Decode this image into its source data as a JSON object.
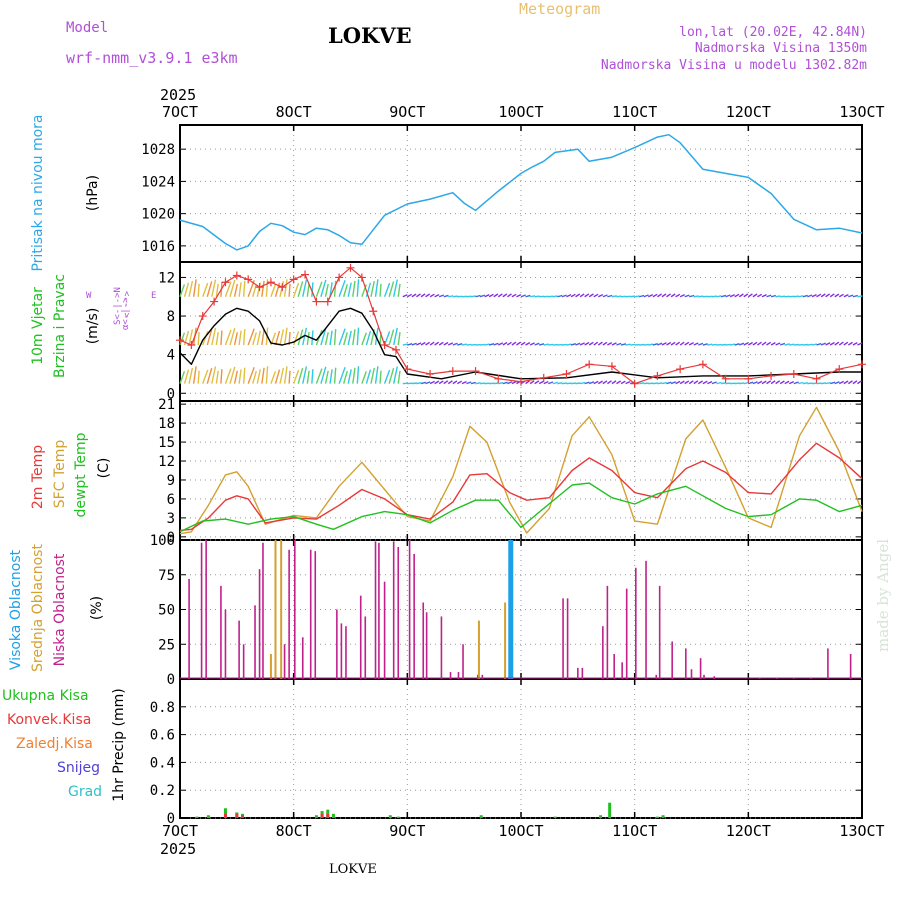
{
  "header": {
    "model_label": "Model",
    "model_name": "wrf-nmm_v3.9.1 e3km",
    "station": "LOKVE",
    "meteogram": "Meteogram",
    "lonlat": "lon,lat (20.02E, 42.84N)",
    "elevation": "Nadmorska Visina 1350m",
    "model_elevation": "Nadmorska Visina u modelu 1302.82m",
    "year_top": "2025",
    "year_bottom": "2025",
    "footer": "LOKVE",
    "credit": "made by Angel"
  },
  "colors": {
    "pressure": "#2ca8e8",
    "wind_mean": "#000000",
    "gust": "#e83838",
    "t2m": "#e83838",
    "sfc": "#d4a030",
    "dew": "#20c020",
    "high_cloud": "#1ea0e8",
    "mid_cloud": "#d4a030",
    "low_cloud": "#c0208c",
    "total_precip": "#20c020",
    "label_violet": "#b050d8"
  },
  "chart_data": {
    "type": "meteogram",
    "x_ticks": [
      "7OCT",
      "8OCT",
      "9OCT",
      "10OCT",
      "11OCT",
      "12OCT",
      "13OCT"
    ],
    "x_range_days": [
      7,
      13
    ],
    "panels": [
      {
        "id": "pressure",
        "type": "line",
        "ylabel_lines": [
          "Pritisak na nivou mora",
          "(hPa)"
        ],
        "ylim": [
          1014,
          1031
        ],
        "yticks": [
          1016,
          1020,
          1024,
          1028
        ],
        "series": [
          {
            "name": "MSLP",
            "x": [
              7.0,
              7.2,
              7.4,
              7.5,
              7.6,
              7.7,
              7.8,
              7.9,
              8.0,
              8.1,
              8.2,
              8.3,
              8.4,
              8.5,
              8.6,
              8.7,
              8.8,
              9.0,
              9.2,
              9.4,
              9.5,
              9.6,
              9.8,
              10.0,
              10.1,
              10.2,
              10.3,
              10.5,
              10.6,
              10.8,
              11.0,
              11.2,
              11.3,
              11.4,
              11.6,
              11.8,
              12.0,
              12.2,
              12.4,
              12.6,
              12.8,
              13.0
            ],
            "values": [
              1019.2,
              1018.4,
              1016.3,
              1015.5,
              1016.0,
              1017.8,
              1018.8,
              1018.5,
              1017.7,
              1017.4,
              1018.2,
              1018.0,
              1017.3,
              1016.4,
              1016.2,
              1018.0,
              1019.8,
              1021.2,
              1021.8,
              1022.6,
              1021.3,
              1020.4,
              1022.8,
              1025.0,
              1025.8,
              1026.5,
              1027.6,
              1028.0,
              1026.5,
              1027.0,
              1028.2,
              1029.5,
              1029.8,
              1028.8,
              1025.5,
              1025.0,
              1024.5,
              1022.5,
              1019.3,
              1018.0,
              1018.2,
              1017.6
            ]
          }
        ]
      },
      {
        "id": "wind",
        "type": "line+barbs",
        "ylabel_lines": [
          "10m Vjetar",
          "Brzina i Pravac",
          "(m/s)"
        ],
        "direction_legend": [
          "N",
          "W",
          "E",
          "S"
        ],
        "ylim": [
          -0.8,
          13.6
        ],
        "yticks": [
          0,
          4,
          8,
          12
        ],
        "series": [
          {
            "name": "Mean wind speed",
            "x": [
              7.0,
              7.1,
              7.2,
              7.3,
              7.4,
              7.5,
              7.6,
              7.7,
              7.8,
              7.9,
              8.0,
              8.1,
              8.2,
              8.3,
              8.4,
              8.5,
              8.6,
              8.7,
              8.8,
              8.9,
              9.0,
              9.3,
              9.6,
              10.0,
              10.4,
              10.8,
              11.2,
              11.6,
              12.0,
              12.4,
              12.8,
              13.0
            ],
            "values": [
              4.2,
              3.0,
              5.5,
              7.0,
              8.2,
              8.8,
              8.5,
              7.5,
              5.2,
              5.0,
              5.3,
              6.0,
              5.5,
              7.0,
              8.5,
              8.8,
              8.3,
              6.5,
              4.0,
              3.8,
              2.0,
              1.5,
              2.2,
              1.5,
              1.6,
              2.2,
              1.6,
              1.8,
              1.8,
              2.0,
              2.2,
              2.2
            ]
          },
          {
            "name": "Gust",
            "x": [
              7.0,
              7.1,
              7.2,
              7.3,
              7.4,
              7.5,
              7.6,
              7.7,
              7.8,
              7.9,
              8.0,
              8.1,
              8.2,
              8.3,
              8.4,
              8.5,
              8.6,
              8.7,
              8.8,
              8.9,
              9.0,
              9.2,
              9.4,
              9.6,
              9.8,
              10.0,
              10.2,
              10.4,
              10.6,
              10.8,
              11.0,
              11.2,
              11.4,
              11.6,
              11.8,
              12.0,
              12.2,
              12.4,
              12.6,
              12.8,
              13.0
            ],
            "values": [
              5.5,
              5.0,
              8.0,
              9.5,
              11.5,
              12.2,
              11.8,
              11.0,
              11.5,
              11.0,
              11.8,
              12.3,
              9.5,
              9.5,
              12.0,
              13.0,
              12.0,
              8.5,
              5.0,
              4.5,
              2.5,
              2.0,
              2.3,
              2.3,
              1.5,
              1.2,
              1.6,
              2.0,
              3.0,
              2.8,
              1.0,
              1.8,
              2.5,
              3.0,
              1.5,
              1.5,
              1.8,
              2.0,
              1.5,
              2.5,
              3.0
            ]
          },
          {
            "name": "Barb row low",
            "level": 1.0
          },
          {
            "name": "Barb row mid",
            "level": 5.0
          },
          {
            "name": "Barb row high",
            "level": 10.0
          }
        ]
      },
      {
        "id": "temperature",
        "type": "line",
        "ylabel_lines": [
          "2m Temp",
          "SFC Temp",
          "dewpt Temp",
          "(C)"
        ],
        "ylim": [
          -0.5,
          21.5
        ],
        "yticks": [
          0,
          3,
          6,
          9,
          12,
          15,
          18,
          21
        ],
        "series": [
          {
            "name": "2m Temp",
            "x": [
              7.0,
              7.1,
              7.25,
              7.4,
              7.5,
              7.6,
              7.75,
              8.0,
              8.2,
              8.4,
              8.6,
              8.8,
              9.0,
              9.2,
              9.4,
              9.55,
              9.7,
              9.9,
              10.05,
              10.25,
              10.45,
              10.6,
              10.8,
              11.0,
              11.2,
              11.45,
              11.6,
              11.8,
              12.0,
              12.2,
              12.45,
              12.6,
              12.8,
              13.0
            ],
            "values": [
              1.0,
              1.2,
              3.0,
              5.8,
              6.5,
              6.0,
              2.2,
              3.0,
              2.8,
              5.0,
              7.5,
              6.0,
              3.5,
              2.8,
              5.5,
              9.8,
              10.0,
              7.0,
              5.8,
              6.2,
              10.5,
              12.5,
              10.5,
              7.0,
              6.2,
              10.8,
              12.0,
              10.2,
              7.0,
              6.8,
              12.2,
              14.8,
              12.5,
              9.2
            ]
          },
          {
            "name": "SFC Temp",
            "x": [
              7.0,
              7.1,
              7.25,
              7.4,
              7.5,
              7.6,
              7.75,
              8.0,
              8.2,
              8.4,
              8.6,
              8.8,
              9.0,
              9.2,
              9.4,
              9.55,
              9.7,
              9.9,
              10.05,
              10.25,
              10.45,
              10.6,
              10.8,
              11.0,
              11.2,
              11.45,
              11.6,
              11.8,
              12.0,
              12.2,
              12.45,
              12.6,
              12.8,
              13.0
            ],
            "values": [
              0.5,
              0.8,
              5.0,
              9.8,
              10.3,
              8.0,
              2.0,
              3.4,
              3.0,
              8.0,
              11.8,
              7.5,
              3.2,
              2.5,
              9.5,
              17.5,
              15.0,
              5.5,
              0.6,
              4.5,
              16.0,
              19.0,
              13.0,
              2.5,
              2.0,
              15.5,
              18.5,
              11.0,
              3.0,
              1.5,
              16.0,
              20.5,
              13.5,
              4.0
            ]
          },
          {
            "name": "Dewpoint",
            "x": [
              7.0,
              7.2,
              7.4,
              7.6,
              7.8,
              8.0,
              8.2,
              8.35,
              8.6,
              8.8,
              9.0,
              9.2,
              9.4,
              9.6,
              9.8,
              10.0,
              10.2,
              10.45,
              10.6,
              10.8,
              11.0,
              11.2,
              11.45,
              11.6,
              11.8,
              12.0,
              12.2,
              12.45,
              12.6,
              12.8,
              13.0
            ],
            "values": [
              0.8,
              2.5,
              2.8,
              2.0,
              2.8,
              3.2,
              2.0,
              1.2,
              3.2,
              4.0,
              3.5,
              2.2,
              4.2,
              5.8,
              5.8,
              1.5,
              4.5,
              8.2,
              8.5,
              6.2,
              5.2,
              6.8,
              8.0,
              6.5,
              4.5,
              3.2,
              3.5,
              6.0,
              5.8,
              4.0,
              5.0
            ]
          }
        ]
      },
      {
        "id": "cloud",
        "type": "bar",
        "ylabel_lines": [
          "Visoka Oblacnost",
          "Srednja Oblacnost",
          "Niska Oblacnost",
          "(%)"
        ],
        "ylim": [
          0,
          100
        ],
        "yticks": [
          0,
          25,
          50,
          75,
          100
        ],
        "series": [
          {
            "name": "Niska Oblacnost",
            "x": [
              7.08,
              7.19,
              7.23,
              7.36,
              7.4,
              7.52,
              7.56,
              7.66,
              7.7,
              7.73,
              7.84,
              7.92,
              7.96,
              8.01,
              8.08,
              8.15,
              8.19,
              8.38,
              8.42,
              8.46,
              8.59,
              8.63,
              8.72,
              8.75,
              8.8,
              8.88,
              8.92,
              9.02,
              9.06,
              9.14,
              9.17,
              9.3,
              9.38,
              9.45,
              9.49,
              9.62,
              9.66,
              9.9,
              10.37,
              10.41,
              10.5,
              10.54,
              10.72,
              10.76,
              10.82,
              10.89,
              10.93,
              11.01,
              11.1,
              11.19,
              11.22,
              11.33,
              11.45,
              11.5,
              11.58,
              11.61,
              11.7,
              12.1,
              12.25,
              12.4,
              12.55,
              12.7,
              12.9
            ],
            "values": [
              72,
              98,
              100,
              67,
              50,
              42,
              25,
              53,
              79,
              98,
              90,
              25,
              93,
              100,
              30,
              93,
              92,
              50,
              40,
              38,
              60,
              45,
              99,
              98,
              70,
              99,
              95,
              100,
              90,
              55,
              48,
              45,
              5,
              5,
              25,
              3,
              3,
              1,
              58,
              58,
              8,
              8,
              38,
              67,
              18,
              12,
              65,
              80,
              85,
              3,
              67,
              27,
              22,
              7,
              15,
              3,
              2,
              1,
              1,
              1,
              1,
              22,
              18
            ]
          },
          {
            "name": "Srednja Oblacnost",
            "x": [
              7.8,
              7.84,
              7.89,
              9.63,
              9.86
            ],
            "values": [
              18,
              100,
              100,
              42,
              55
            ]
          },
          {
            "name": "Visoka Oblacnost",
            "x": [
              9.91
            ],
            "values": [
              100
            ]
          }
        ]
      },
      {
        "id": "precip",
        "type": "bar",
        "ylabel_lines": [
          "1hr Precip (mm)"
        ],
        "ylim": [
          0,
          1.0
        ],
        "yticks": [
          0,
          0.2,
          0.4,
          0.6,
          0.8
        ],
        "legend": [
          "Ukupna Kisa",
          "Konvek.Kisa",
          "Zaledj.Kisa",
          "Snijeg",
          "Grad"
        ],
        "series": [
          {
            "name": "Ukupna Kisa",
            "x": [
              7.15,
              7.25,
              7.4,
              7.5,
              7.55,
              8.2,
              8.25,
              8.3,
              8.35,
              8.85,
              8.92,
              9.65,
              10.3,
              10.7,
              10.78,
              11.2,
              11.25
            ],
            "values": [
              0.01,
              0.02,
              0.07,
              0.04,
              0.03,
              0.02,
              0.05,
              0.06,
              0.03,
              0.02,
              0.01,
              0.02,
              0.01,
              0.02,
              0.11,
              0.01,
              0.02
            ]
          },
          {
            "name": "Konvek.Kisa",
            "x": [
              7.4,
              7.5,
              7.55,
              8.25,
              8.3
            ],
            "values": [
              0.03,
              0.03,
              0.02,
              0.03,
              0.03
            ]
          }
        ]
      }
    ]
  }
}
